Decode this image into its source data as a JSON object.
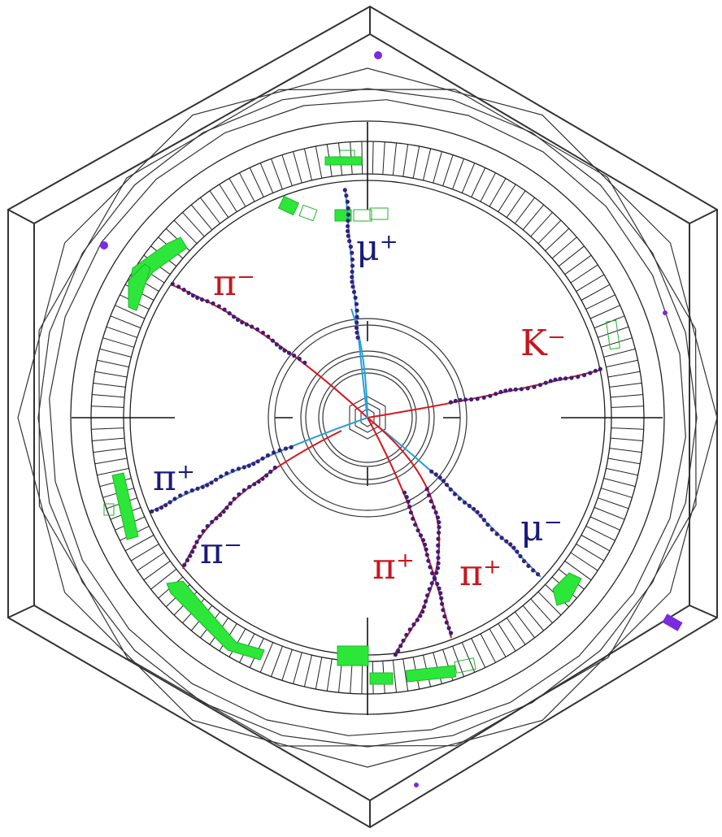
{
  "labels": {
    "mu_plus": "μ⁺",
    "pi_minus_top": "π⁻",
    "k_minus": "K⁻",
    "pi_plus_left": "π⁺",
    "pi_minus_lower": "π⁻",
    "mu_minus": "μ⁻",
    "pi_plus_center": "π⁺",
    "pi_plus_right": "π⁺"
  },
  "colors": {
    "track_red": "#d8161e",
    "track_blue": "#2a9fd6",
    "hits": "#3a1f7a",
    "deposit_green": "#2de63a",
    "label_red": "#c8161e",
    "label_blue": "#1a1a7a",
    "frame": "#333333",
    "isolated_hit": "#7a2ae0"
  }
}
